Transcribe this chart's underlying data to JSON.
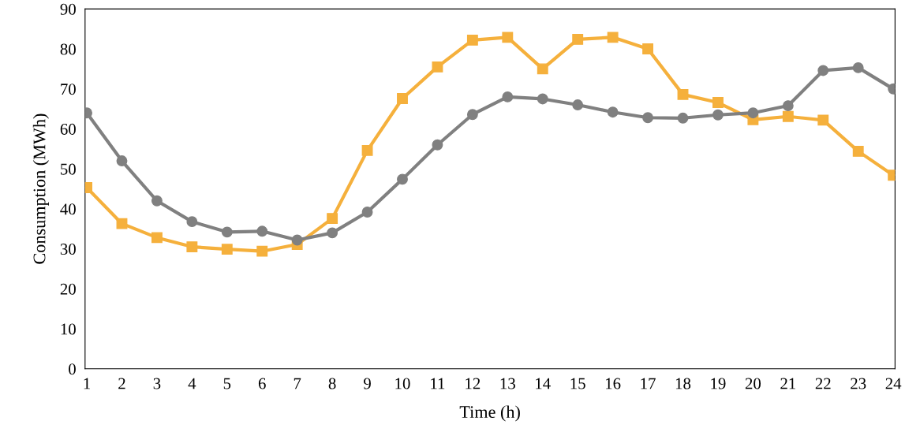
{
  "chart_data": {
    "type": "line",
    "xlabel": "Time (h)",
    "ylabel": "Consumption (MWh)",
    "categories": [
      "1",
      "2",
      "3",
      "4",
      "5",
      "6",
      "7",
      "8",
      "9",
      "10",
      "11",
      "12",
      "13",
      "14",
      "15",
      "16",
      "17",
      "18",
      "19",
      "20",
      "21",
      "22",
      "23",
      "24"
    ],
    "series": [
      {
        "color": "#808080",
        "marker": "circle",
        "values": [
          64,
          52,
          42,
          36.8,
          34.2,
          34.4,
          32.2,
          34,
          39.2,
          47.4,
          56,
          63.6,
          68,
          67.5,
          66,
          64.2,
          62.8,
          62.7,
          63.5,
          64,
          65.8,
          74.6,
          75.3,
          70
        ]
      },
      {
        "color": "#f5b03c",
        "marker": "square",
        "values": [
          45.3,
          36.3,
          32.8,
          30.5,
          29.9,
          29.4,
          31.1,
          37.6,
          54.6,
          67.6,
          75.5,
          82.2,
          82.9,
          75,
          82.4,
          82.9,
          80,
          68.6,
          66.6,
          62.3,
          63.1,
          62.2,
          54.4,
          48.4
        ]
      }
    ],
    "ylim": [
      0,
      90
    ],
    "yticks": [
      0,
      10,
      20,
      30,
      40,
      50,
      60,
      70,
      80,
      90
    ],
    "grid": false,
    "line_style": "solid"
  }
}
